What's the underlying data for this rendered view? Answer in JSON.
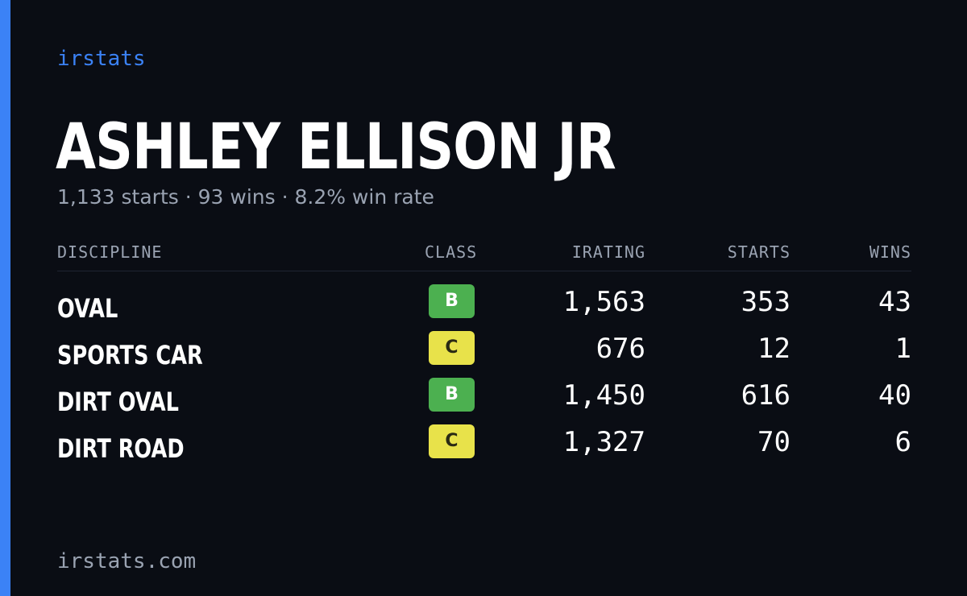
{
  "brand": "irstats",
  "driver": {
    "name": "ASHLEY ELLISON JR",
    "summary": "1,133 starts · 93 wins · 8.2% win rate"
  },
  "table": {
    "headers": {
      "discipline": "DISCIPLINE",
      "class": "CLASS",
      "irating": "IRATING",
      "starts": "STARTS",
      "wins": "WINS"
    },
    "rows": [
      {
        "discipline": "OVAL",
        "class": "B",
        "irating": "1,563",
        "starts": "353",
        "wins": "43"
      },
      {
        "discipline": "SPORTS CAR",
        "class": "C",
        "irating": "676",
        "starts": "12",
        "wins": "1"
      },
      {
        "discipline": "DIRT OVAL",
        "class": "B",
        "irating": "1,450",
        "starts": "616",
        "wins": "40"
      },
      {
        "discipline": "DIRT ROAD",
        "class": "C",
        "irating": "1,327",
        "starts": "70",
        "wins": "6"
      }
    ]
  },
  "footer": "irstats.com",
  "colors": {
    "background": "#0a0d14",
    "accent": "#3b82f6",
    "class_b": "#4cb050",
    "class_c": "#e8e24a",
    "muted_text": "#9aa3b2"
  }
}
